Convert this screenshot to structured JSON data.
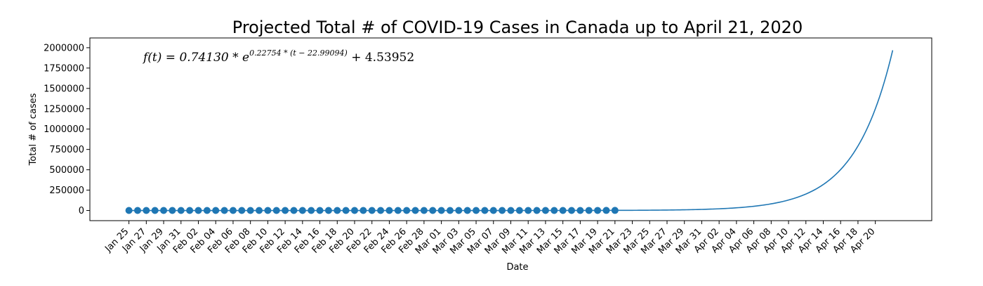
{
  "chart_data": {
    "type": "line",
    "title": "Projected Total # of COVID-19 Cases in Canada up to April 21, 2020",
    "xlabel": "Date",
    "ylabel": "Total # of cases",
    "annotation": {
      "lhs": "f(t) = 0.74130 * e",
      "exponent": "0.22754 * (t − 22.99094)",
      "rhs": " + 4.53952"
    },
    "fit": {
      "a": 0.7413,
      "b": 0.22754,
      "t0": 22.99094,
      "c": 4.53952,
      "t_start": 0,
      "t_end": 88
    },
    "x_tick_labels": [
      "Jan 25",
      "Jan 27",
      "Jan 29",
      "Jan 31",
      "Feb 02",
      "Feb 04",
      "Feb 06",
      "Feb 08",
      "Feb 10",
      "Feb 12",
      "Feb 14",
      "Feb 16",
      "Feb 18",
      "Feb 20",
      "Feb 22",
      "Feb 24",
      "Feb 26",
      "Feb 28",
      "Mar 01",
      "Mar 03",
      "Mar 05",
      "Mar 07",
      "Mar 09",
      "Mar 11",
      "Mar 13",
      "Mar 15",
      "Mar 17",
      "Mar 19",
      "Mar 21",
      "Mar 23",
      "Mar 25",
      "Mar 27",
      "Mar 29",
      "Mar 31",
      "Apr 02",
      "Apr 04",
      "Apr 06",
      "Apr 08",
      "Apr 10",
      "Apr 12",
      "Apr 14",
      "Apr 16",
      "Apr 18",
      "Apr 20"
    ],
    "x_tick_step_days": 2,
    "y_ticks": [
      0,
      250000,
      500000,
      750000,
      1000000,
      1250000,
      1500000,
      1750000,
      2000000
    ],
    "y_tick_labels": [
      "0",
      "250000",
      "500000",
      "750000",
      "1000000",
      "1250000",
      "1500000",
      "1750000",
      "2000000"
    ],
    "ylim": [
      -125000,
      2120000
    ],
    "xlim_days": [
      -4.5,
      92.5
    ],
    "observed_points": {
      "label_note": "daily observed totals, Jan 25 to Mar 21",
      "t": [
        0,
        1,
        2,
        3,
        4,
        5,
        6,
        7,
        8,
        9,
        10,
        11,
        12,
        13,
        14,
        15,
        16,
        17,
        18,
        19,
        20,
        21,
        22,
        23,
        24,
        25,
        26,
        27,
        28,
        29,
        30,
        31,
        32,
        33,
        34,
        35,
        36,
        37,
        38,
        39,
        40,
        41,
        42,
        43,
        44,
        45,
        46,
        47,
        48,
        49,
        50,
        51,
        52,
        53,
        54,
        55,
        56
      ],
      "values": [
        1,
        1,
        2,
        2,
        2,
        3,
        3,
        4,
        4,
        4,
        5,
        5,
        5,
        5,
        5,
        6,
        7,
        7,
        7,
        7,
        7,
        8,
        8,
        8,
        9,
        9,
        10,
        11,
        12,
        13,
        14,
        16,
        19,
        22,
        25,
        30,
        34,
        40,
        46,
        52,
        62,
        74,
        80,
        93,
        108,
        125,
        150,
        177,
        200,
        250,
        300,
        360,
        430,
        520,
        640,
        800,
        950
      ]
    },
    "colors": {
      "line": "#1f77b4",
      "marker": "#1f77b4",
      "axes": "#000000"
    },
    "grid": false,
    "legend": "none"
  }
}
